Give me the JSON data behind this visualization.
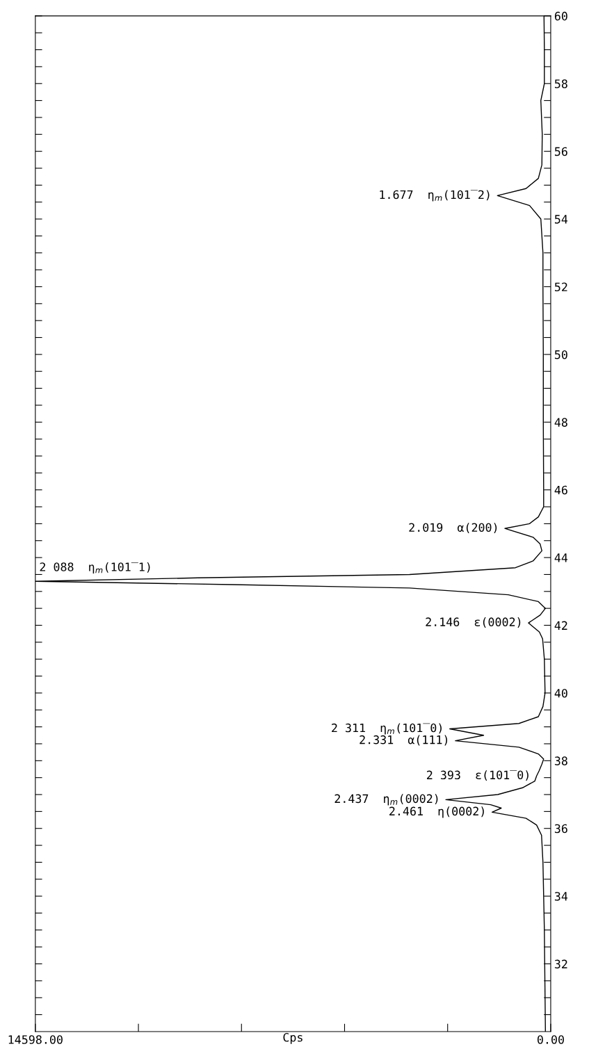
{
  "chart_data": {
    "type": "line",
    "color": "#000000",
    "xlabel": "Cps",
    "grid": false,
    "values": [
      30.0,
      31.0,
      32.0,
      33.0,
      34.0,
      35.0,
      35.8,
      36.1,
      36.3,
      36.48,
      36.6,
      36.7,
      36.85,
      37.0,
      37.2,
      37.4,
      37.55,
      37.7,
      37.9,
      38.05,
      38.2,
      38.4,
      38.59,
      38.75,
      38.94,
      39.1,
      39.3,
      39.6,
      40.0,
      41.0,
      41.6,
      41.8,
      42.07,
      42.3,
      42.5,
      42.7,
      42.9,
      43.1,
      43.2,
      43.3,
      43.4,
      43.5,
      43.7,
      43.9,
      44.2,
      44.4,
      44.6,
      44.86,
      45.0,
      45.2,
      45.5,
      46.0,
      48.0,
      50.0,
      52.0,
      53.0,
      54.0,
      54.4,
      54.69,
      54.9,
      55.2,
      55.6,
      56.5,
      57.5,
      58.0,
      59.0,
      60.0
    ],
    "x": [
      150,
      160,
      170,
      180,
      200,
      220,
      260,
      400,
      700,
      1660,
      1400,
      1700,
      2970,
      1500,
      800,
      450,
      400,
      330,
      250,
      200,
      350,
      900,
      2700,
      1900,
      2860,
      900,
      350,
      220,
      160,
      180,
      230,
      320,
      630,
      300,
      150,
      350,
      1200,
      4000,
      9000,
      14598,
      10000,
      4000,
      1000,
      500,
      250,
      300,
      500,
      1300,
      600,
      350,
      200,
      200,
      210,
      210,
      220,
      220,
      280,
      600,
      1510,
      700,
      350,
      250,
      240,
      280,
      180,
      180,
      190
    ],
    "ylim": [
      30,
      60
    ],
    "yticks": [
      {
        "value": 30.5,
        "label": null
      },
      {
        "value": 31,
        "label": null
      },
      {
        "value": 31.5,
        "label": null
      },
      32,
      {
        "value": 32.5,
        "label": null
      },
      {
        "value": 33,
        "label": null
      },
      {
        "value": 33.5,
        "label": null
      },
      34,
      {
        "value": 34.5,
        "label": null
      },
      {
        "value": 35,
        "label": null
      },
      {
        "value": 35.5,
        "label": null
      },
      36,
      {
        "value": 36.5,
        "label": null
      },
      {
        "value": 37,
        "label": null
      },
      {
        "value": 37.5,
        "label": null
      },
      38,
      {
        "value": 38.5,
        "label": null
      },
      {
        "value": 39,
        "label": null
      },
      {
        "value": 39.5,
        "label": null
      },
      40,
      {
        "value": 40.5,
        "label": null
      },
      {
        "value": 41,
        "label": null
      },
      {
        "value": 41.5,
        "label": null
      },
      42,
      {
        "value": 42.5,
        "label": null
      },
      {
        "value": 43,
        "label": null
      },
      {
        "value": 43.5,
        "label": null
      },
      44,
      {
        "value": 44.5,
        "label": null
      },
      {
        "value": 45,
        "label": null
      },
      {
        "value": 45.5,
        "label": null
      },
      46,
      {
        "value": 46.5,
        "label": null
      },
      {
        "value": 47,
        "label": null
      },
      {
        "value": 47.5,
        "label": null
      },
      48,
      {
        "value": 48.5,
        "label": null
      },
      {
        "value": 49,
        "label": null
      },
      {
        "value": 49.5,
        "label": null
      },
      50,
      {
        "value": 50.5,
        "label": null
      },
      {
        "value": 51,
        "label": null
      },
      {
        "value": 51.5,
        "label": null
      },
      52,
      {
        "value": 52.5,
        "label": null
      },
      {
        "value": 53,
        "label": null
      },
      {
        "value": 53.5,
        "label": null
      },
      54,
      {
        "value": 54.5,
        "label": null
      },
      {
        "value": 55,
        "label": null
      },
      {
        "value": 55.5,
        "label": null
      },
      56,
      {
        "value": 56.5,
        "label": null
      },
      {
        "value": 57,
        "label": null
      },
      {
        "value": 57.5,
        "label": null
      },
      58,
      {
        "value": 58.5,
        "label": null
      },
      {
        "value": 59,
        "label": null
      },
      {
        "value": 59.5,
        "label": null
      },
      60
    ],
    "xlim": [
      14598,
      0
    ],
    "xticks": [
      {
        "value": 14598,
        "label": "14598.00"
      },
      {
        "value": 11678.4,
        "label": null
      },
      {
        "value": 8758.8,
        "label": null
      },
      {
        "value": 5839.2,
        "label": null
      },
      {
        "value": 2919.6,
        "label": null
      },
      {
        "value": 0,
        "label": "0.00"
      }
    ],
    "annotations": [
      {
        "text": "2.461  η(0002)",
        "y": 36.48,
        "x": 1660
      },
      {
        "text": "2.437  η$_{m}$(0002)",
        "y": 36.85,
        "x": 2970
      },
      {
        "text": "2 393  ε(101̅0)",
        "y": 37.55,
        "x": 400
      },
      {
        "text": "2.331  α(111)",
        "y": 38.59,
        "x": 2700
      },
      {
        "text": "2 311  η$_{m}$(101̅0)",
        "y": 38.94,
        "x": 2860
      },
      {
        "text": "2.146  ε(0002)",
        "y": 42.07,
        "x": 630
      },
      {
        "text": "2 088  η$_{m}$(101̅1)",
        "y": 43.3,
        "x": 14598
      },
      {
        "text": "2.019  α(200)",
        "y": 44.86,
        "x": 1300
      },
      {
        "text": "1.677  η$_{m}$(101̅2)",
        "y": 54.69,
        "x": 1510
      }
    ]
  }
}
